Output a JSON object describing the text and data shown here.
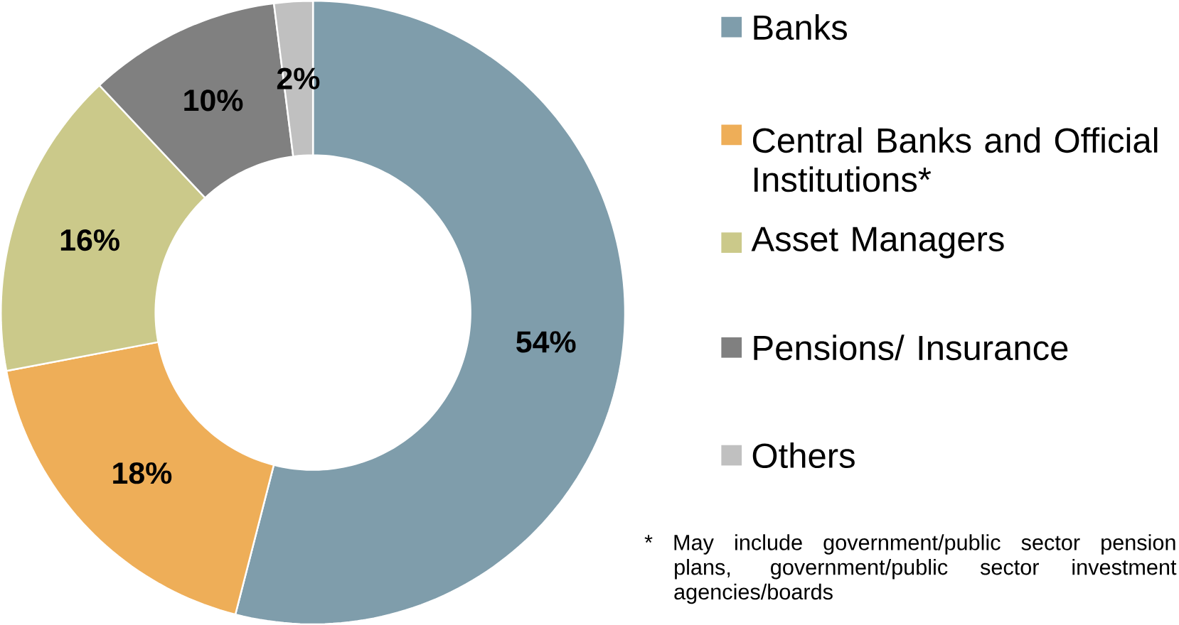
{
  "chart_data": {
    "type": "donut",
    "categories": [
      "Banks",
      "Central Banks and Official Institutions*",
      "Asset Managers",
      "Pensions/ Insurance",
      "Others"
    ],
    "values": [
      54,
      18,
      16,
      10,
      2
    ],
    "colors": [
      "#7f9dab",
      "#eeae58",
      "#cbc98a",
      "#808080",
      "#c0c0c0"
    ],
    "value_labels": [
      "54%",
      "18%",
      "16%",
      "10%",
      "2%"
    ],
    "legend": "right",
    "annotations": [
      "* May include government/public sector pension plans, government/public sector investment agencies/boards"
    ]
  }
}
